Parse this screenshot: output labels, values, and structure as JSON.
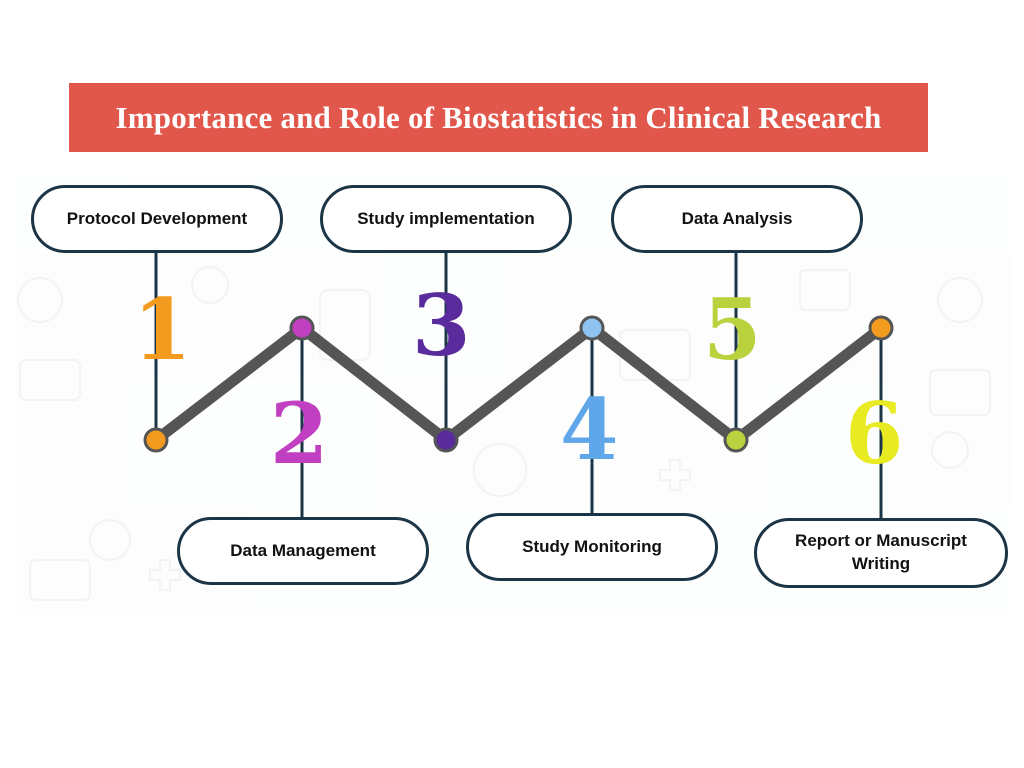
{
  "title": "Importance and Role of Biostatistics in Clinical Research",
  "colors": {
    "banner": "#e1574b",
    "line": "#555555",
    "box_border": "#1c3546"
  },
  "steps": [
    {
      "number": "1",
      "label": "Protocol Development",
      "color": "#f39b1e"
    },
    {
      "number": "2",
      "label": "Data Management",
      "color": "#c13fc1"
    },
    {
      "number": "3",
      "label": "Study implementation",
      "color": "#5a2b9c"
    },
    {
      "number": "4",
      "label": "Study Monitoring",
      "color": "#5fa7e8"
    },
    {
      "number": "5",
      "label": "Data Analysis",
      "color": "#b9d23d"
    },
    {
      "number": "6",
      "label": "Report or Manuscript\nWriting",
      "color": "#e8ea22"
    }
  ]
}
